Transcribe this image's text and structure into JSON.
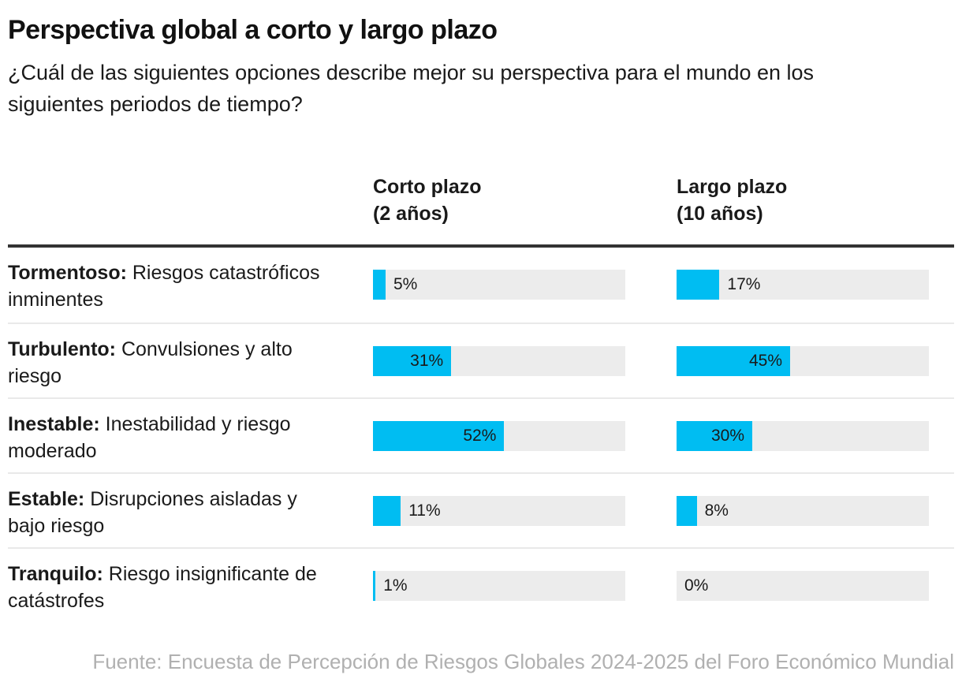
{
  "header": {
    "title": "Perspectiva global a corto y largo plazo",
    "subtitle": "¿Cuál de las siguientes opciones describe mejor su perspectiva para el mundo en los siguientes periodos de tiempo?"
  },
  "chart_data": {
    "type": "bar",
    "orientation": "horizontal",
    "unit": "%",
    "axis_range": [
      0,
      100
    ],
    "grid": false,
    "legend_position": "none",
    "column_headers": [
      {
        "label": "Corto plazo",
        "sublabel": "(2 años)"
      },
      {
        "label": "Largo plazo",
        "sublabel": "(10 años)"
      }
    ],
    "categories": [
      {
        "term": "Tormentoso:",
        "description": "Riesgos catastróficos inminentes"
      },
      {
        "term": "Turbulento:",
        "description": "Convulsiones y alto riesgo"
      },
      {
        "term": "Inestable:",
        "description": "Inestabilidad y riesgo moderado"
      },
      {
        "term": "Estable:",
        "description": "Disrupciones aisladas y bajo riesgo"
      },
      {
        "term": "Tranquilo:",
        "description": "Riesgo insignificante de catástrofes"
      }
    ],
    "series": [
      {
        "name": "Corto plazo (2 años)",
        "values": [
          5,
          31,
          52,
          11,
          1
        ]
      },
      {
        "name": "Largo plazo (10 años)",
        "values": [
          17,
          45,
          30,
          8,
          0
        ]
      }
    ]
  },
  "footer": {
    "source": "Fuente: Encuesta de Percepción de Riesgos Globales 2024-2025 del Foro Económico Mundial"
  },
  "colors": {
    "accent": "#00bdf2",
    "track": "#ececec",
    "text": "#1a1a1a",
    "rule": "#333333",
    "separator": "#e9e9e9",
    "muted": "#b0b0b0"
  }
}
